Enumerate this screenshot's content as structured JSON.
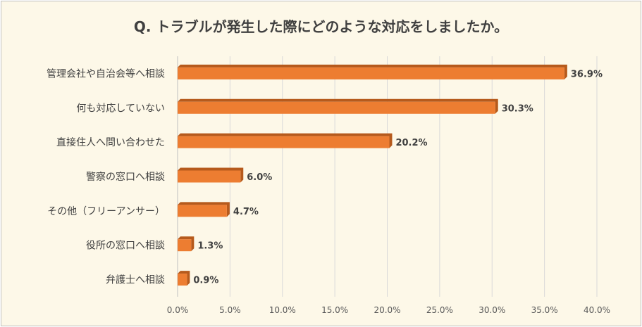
{
  "chart_data": {
    "type": "bar",
    "orientation": "horizontal",
    "title": "Q. トラブルが発生した際にどのような対応をしましたか。",
    "categories": [
      "管理会社や自治会等へ相談",
      "何も対応していない",
      "直接住人へ問い合わせた",
      "警察の窓口へ相談",
      "その他（フリーアンサー）",
      "役所の窓口へ相談",
      "弁護士へ相談"
    ],
    "values": [
      36.9,
      30.3,
      20.2,
      6.0,
      4.7,
      1.3,
      0.9
    ],
    "value_labels": [
      "36.9%",
      "30.3%",
      "20.2%",
      "6.0%",
      "4.7%",
      "1.3%",
      "0.9%"
    ],
    "x_ticks": [
      "0.0%",
      "5.0%",
      "10.0%",
      "15.0%",
      "20.0%",
      "25.0%",
      "30.0%",
      "35.0%",
      "40.0%"
    ],
    "xlim": [
      0,
      40
    ],
    "grid": true,
    "bar_color": "#ed7d31",
    "bar_shadow_color": "#b65a1c"
  }
}
